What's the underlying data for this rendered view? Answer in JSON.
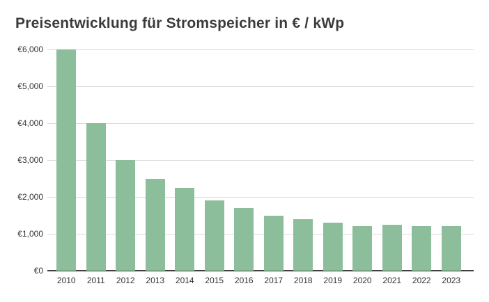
{
  "title": "Preisentwicklung für Stromspeicher in € / kWp",
  "colors": {
    "bar": "#8dbe9c",
    "grid": "#dcdcdc",
    "axis": "#3f3f3f",
    "title_text": "#3b3b3b",
    "tick_text": "#333333",
    "background": "#ffffff"
  },
  "chart_data": {
    "type": "bar",
    "title": "Preisentwicklung für Stromspeicher in € / kWp",
    "categories": [
      "2010",
      "2011",
      "2012",
      "2013",
      "2014",
      "2015",
      "2016",
      "2017",
      "2018",
      "2019",
      "2020",
      "2021",
      "2022",
      "2023"
    ],
    "values": [
      6000,
      4000,
      3000,
      2500,
      2250,
      1900,
      1700,
      1500,
      1400,
      1300,
      1200,
      1250,
      1200,
      1200
    ],
    "xlabel": "",
    "ylabel": "",
    "ylim": [
      0,
      6000
    ],
    "y_ticks": [
      {
        "value": 0,
        "label": "€0"
      },
      {
        "value": 1000,
        "label": "€1,000"
      },
      {
        "value": 2000,
        "label": "€2,000"
      },
      {
        "value": 3000,
        "label": "€3,000"
      },
      {
        "value": 4000,
        "label": "€4,000"
      },
      {
        "value": 5000,
        "label": "€5,000"
      },
      {
        "value": 6000,
        "label": "€6,000"
      }
    ],
    "grid": true,
    "legend_position": "none",
    "bar_color": "#8dbe9c"
  }
}
